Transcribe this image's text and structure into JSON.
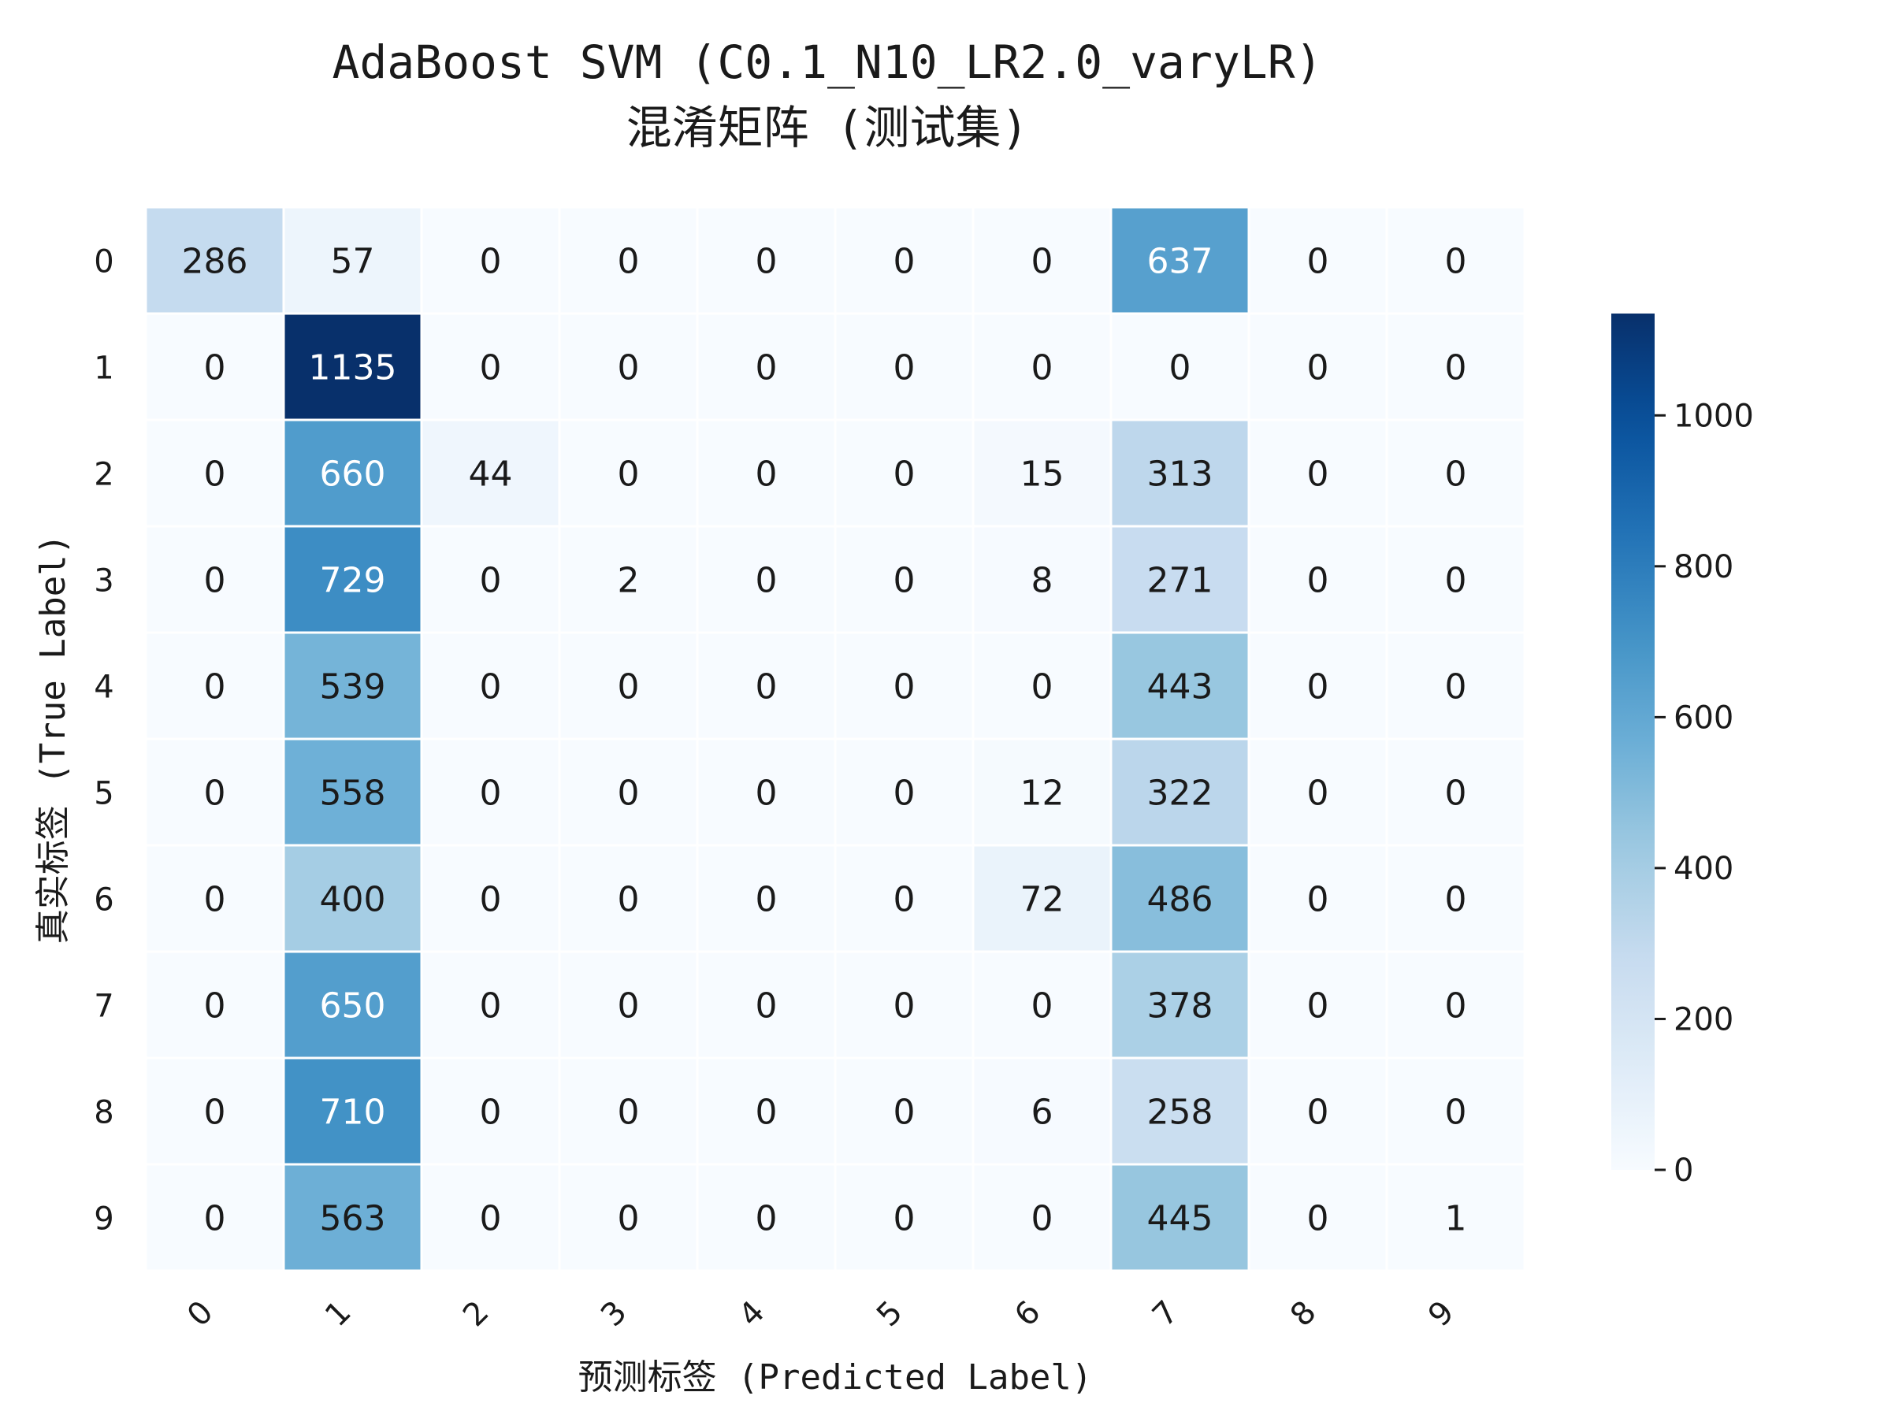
{
  "chart_data": {
    "type": "heatmap",
    "title_line1": "AdaBoost SVM (C0.1_N10_LR2.0_varyLR)",
    "title_line2": "混淆矩阵 (测试集)",
    "xlabel": "预测标签 (Predicted Label)",
    "ylabel": "真实标签 (True Label)",
    "x_categories": [
      "0",
      "1",
      "2",
      "3",
      "4",
      "5",
      "6",
      "7",
      "8",
      "9"
    ],
    "y_categories": [
      "0",
      "1",
      "2",
      "3",
      "4",
      "5",
      "6",
      "7",
      "8",
      "9"
    ],
    "matrix": [
      [
        286,
        57,
        0,
        0,
        0,
        0,
        0,
        637,
        0,
        0
      ],
      [
        0,
        1135,
        0,
        0,
        0,
        0,
        0,
        0,
        0,
        0
      ],
      [
        0,
        660,
        44,
        0,
        0,
        0,
        15,
        313,
        0,
        0
      ],
      [
        0,
        729,
        0,
        2,
        0,
        0,
        8,
        271,
        0,
        0
      ],
      [
        0,
        539,
        0,
        0,
        0,
        0,
        0,
        443,
        0,
        0
      ],
      [
        0,
        558,
        0,
        0,
        0,
        0,
        12,
        322,
        0,
        0
      ],
      [
        0,
        400,
        0,
        0,
        0,
        0,
        72,
        486,
        0,
        0
      ],
      [
        0,
        650,
        0,
        0,
        0,
        0,
        0,
        378,
        0,
        0
      ],
      [
        0,
        710,
        0,
        0,
        0,
        0,
        6,
        258,
        0,
        0
      ],
      [
        0,
        563,
        0,
        0,
        0,
        0,
        0,
        445,
        0,
        1
      ]
    ],
    "colormap": "Blues",
    "color_range": [
      0,
      1135
    ],
    "colorbar_ticks": [
      0,
      200,
      400,
      600,
      800,
      1000
    ],
    "colors": {
      "low": "#f7fbff",
      "high": "#08306b",
      "text_dark": "#1a1a1a",
      "text_light": "#ffffff"
    }
  }
}
